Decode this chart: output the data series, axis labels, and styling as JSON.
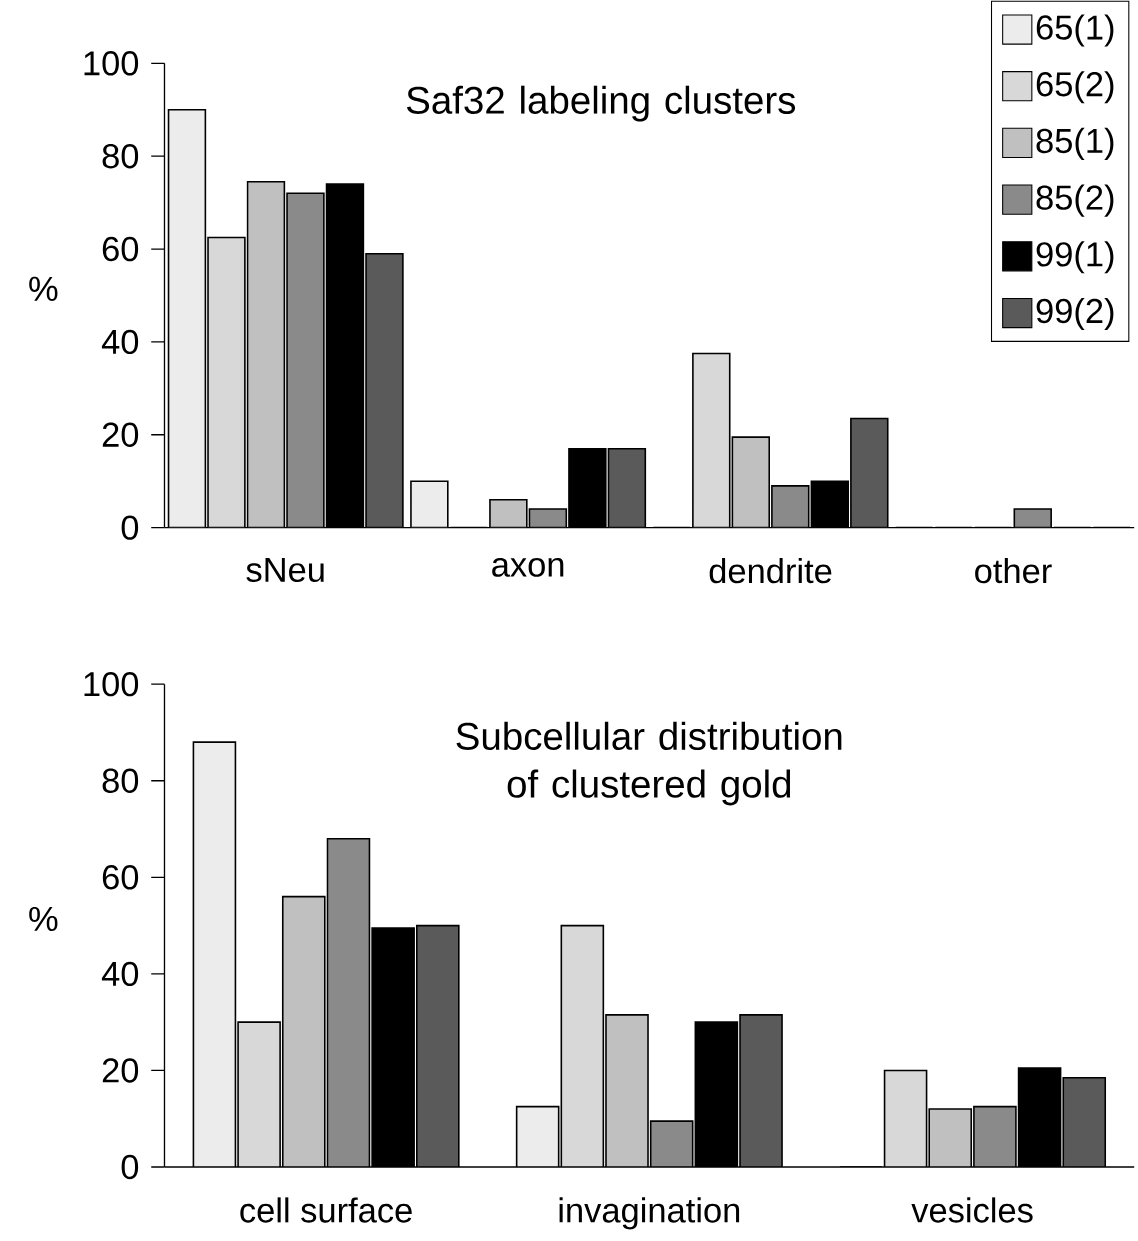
{
  "chart_data": [
    {
      "type": "bar",
      "title": "Saf32 labeling clusters",
      "ylabel": "%",
      "categories": [
        "sNeu",
        "axon",
        "dendrite",
        "other"
      ],
      "ylim": [
        0,
        100
      ],
      "yticks": [
        0,
        20,
        40,
        60,
        80,
        100
      ],
      "legend": "top right",
      "grid": false,
      "series": [
        {
          "name": "65(1)",
          "color": "#ececec",
          "values": [
            90,
            10,
            0,
            0
          ]
        },
        {
          "name": "65(2)",
          "color": "#d8d8d8",
          "values": [
            62.5,
            0,
            37.5,
            0
          ]
        },
        {
          "name": "85(1)",
          "color": "#c0c0c0",
          "values": [
            74.5,
            6,
            19.5,
            0
          ]
        },
        {
          "name": "85(2)",
          "color": "#8a8a8a",
          "values": [
            72,
            4,
            9,
            4
          ]
        },
        {
          "name": "99(1)",
          "color": "#000000",
          "values": [
            74,
            17,
            10,
            0
          ]
        },
        {
          "name": "99(2)",
          "color": "#5a5a5a",
          "values": [
            59,
            17,
            23.5,
            0
          ]
        }
      ]
    },
    {
      "type": "bar",
      "title": "Subcellular distribution of clustered gold",
      "ylabel": "%",
      "categories": [
        "cell surface",
        "invagination",
        "vesicles"
      ],
      "ylim": [
        0,
        100
      ],
      "yticks": [
        0,
        20,
        40,
        60,
        80,
        100
      ],
      "grid": false,
      "series": [
        {
          "color": "#ececec",
          "values": [
            88,
            12.5,
            0
          ]
        },
        {
          "color": "#d8d8d8",
          "values": [
            30,
            50,
            20
          ]
        },
        {
          "color": "#c0c0c0",
          "values": [
            56,
            31.5,
            12
          ]
        },
        {
          "color": "#8a8a8a",
          "values": [
            68,
            9.5,
            12.5
          ]
        },
        {
          "color": "#000000",
          "values": [
            49.5,
            30,
            20.5
          ]
        },
        {
          "color": "#5a5a5a",
          "values": [
            50,
            31.5,
            18.5
          ]
        }
      ]
    }
  ]
}
